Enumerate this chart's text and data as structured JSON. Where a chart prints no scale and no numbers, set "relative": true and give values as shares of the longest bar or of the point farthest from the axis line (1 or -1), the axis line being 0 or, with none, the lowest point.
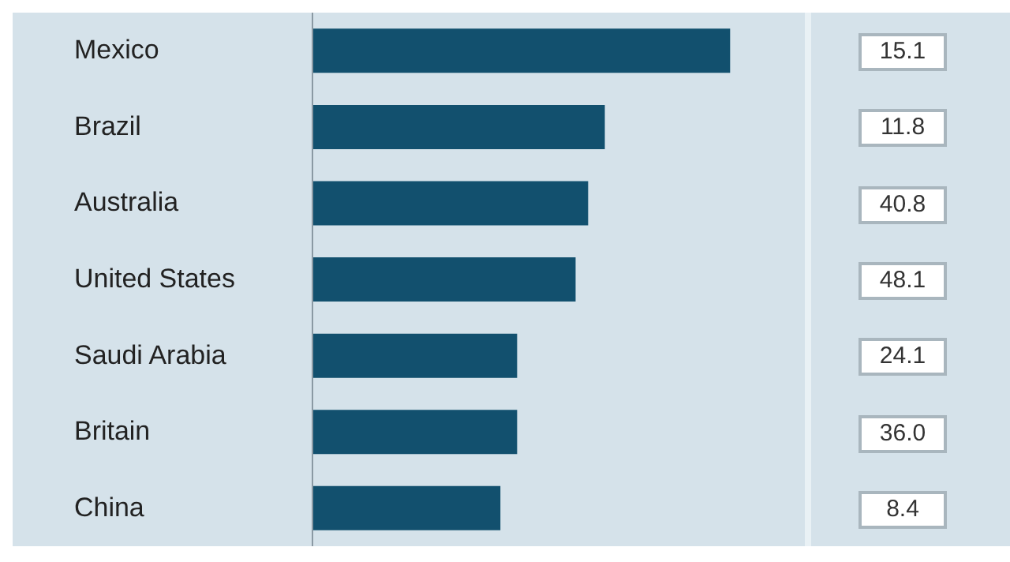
{
  "chart_data": [
    {
      "type": "bar",
      "orientation": "horizontal",
      "relative": true,
      "categories": [
        "Mexico",
        "Brazil",
        "Australia",
        "United States",
        "Saudi Arabia",
        "Britain",
        "China"
      ],
      "series": [
        {
          "color": "#12506e",
          "values": [
            1,
            0.7,
            0.66,
            0.63,
            0.49,
            0.49,
            0.45
          ]
        }
      ]
    },
    {
      "type": "other",
      "annotations": [
        "15.1",
        "11.8",
        "40.8",
        "48.1",
        "24.1",
        "36.0",
        "8.4"
      ]
    }
  ]
}
